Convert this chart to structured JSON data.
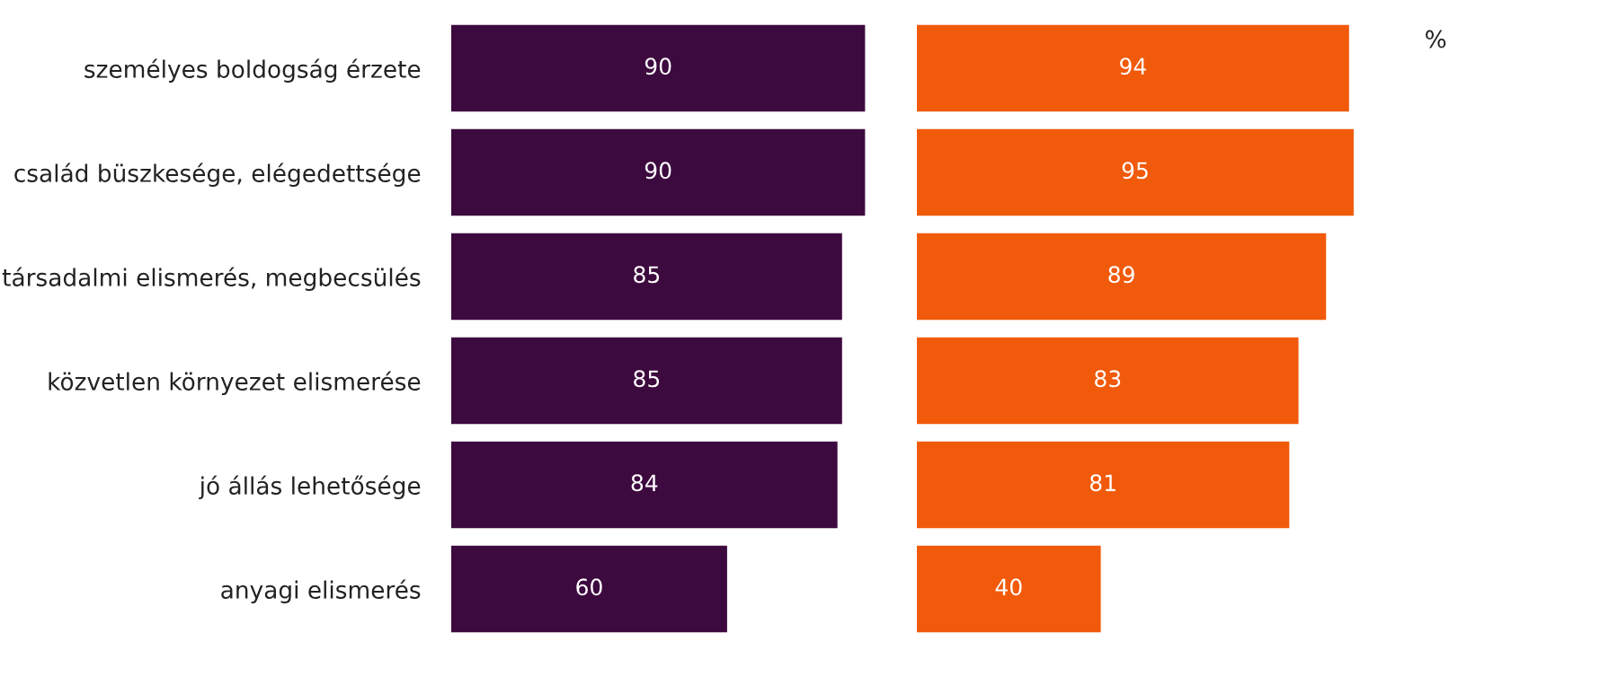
{
  "chart_data": [
    {
      "type": "bar",
      "orientation": "horizontal",
      "categories": [
        "személyes boldogság érzete",
        "család büszkesége, elégedettsége",
        "társadalmi elismerés, megbecsülés",
        "közvetlen környezet elismerése",
        "jó állás lehetősége",
        "anyagi elismerés"
      ],
      "values": [
        90,
        90,
        85,
        85,
        84,
        60
      ],
      "color": "#3d0a3f",
      "data_labels": true,
      "tick_labels": "y",
      "grid": false,
      "legend": false
    },
    {
      "type": "bar",
      "orientation": "horizontal",
      "categories": [
        null,
        null,
        null,
        null,
        null,
        null
      ],
      "values": [
        94,
        95,
        89,
        83,
        81,
        40
      ],
      "color": "#f05a0a",
      "data_labels": true,
      "tick_labels": false,
      "grid": false,
      "legend": false,
      "annotations": [
        "%"
      ]
    }
  ]
}
